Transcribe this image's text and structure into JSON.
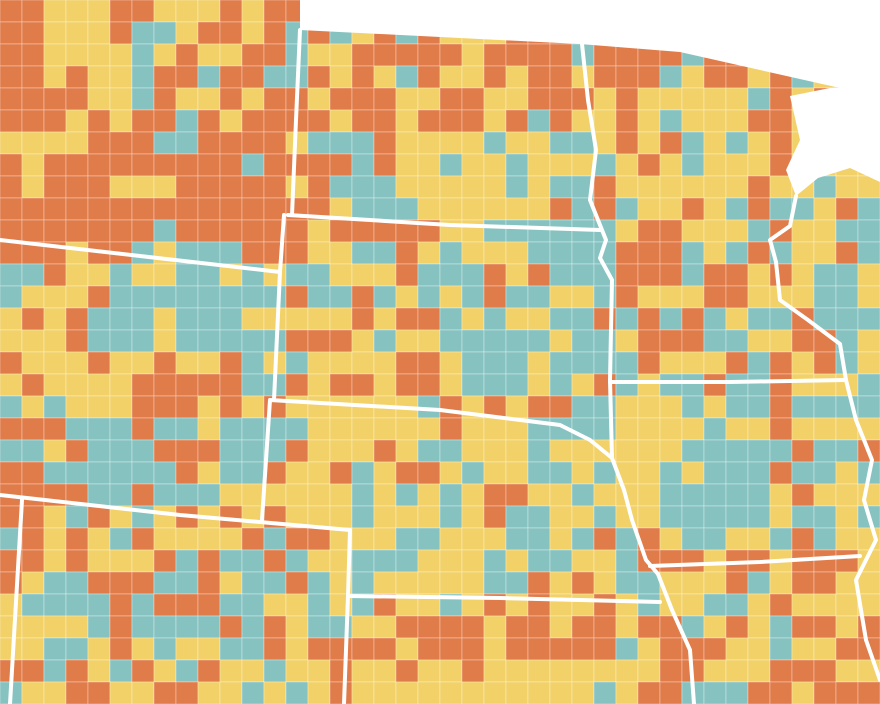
{
  "map": {
    "palette": [
      "#e07b4a",
      "#f2d168",
      "#86c3c0"
    ]
  }
}
